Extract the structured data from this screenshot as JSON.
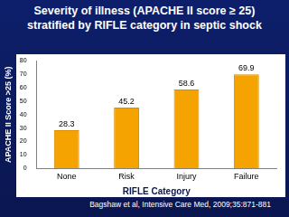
{
  "chart_data": {
    "type": "bar",
    "title": "Severity of illness (APACHE II score ≥ 25) stratified by RIFLE category in septic shock",
    "x_label": "RIFLE Category",
    "y_label": "APACHE II Score >25 (%)",
    "categories": [
      "None",
      "Risk",
      "Injury",
      "Failure"
    ],
    "values": [
      28.3,
      45.2,
      58.6,
      69.9
    ],
    "color": "#f5a300",
    "ylim": [
      0,
      80
    ],
    "yticks": [
      0,
      10,
      20,
      30,
      40,
      50,
      60,
      70,
      80
    ],
    "grid": false,
    "data_labels": true,
    "annotations": [
      "Bagshaw et al, Intensive Care Med, 2009;35:871-881"
    ]
  }
}
